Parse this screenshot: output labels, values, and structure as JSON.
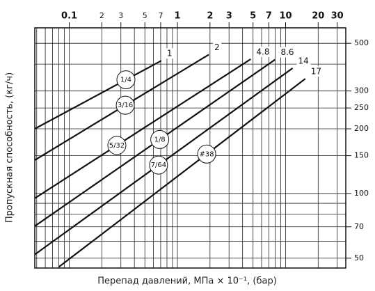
{
  "chart_data": {
    "type": "line",
    "xlabel": "Перепад давлений, МПа × 10⁻¹, (бар)",
    "ylabel": "Пропускная способность, (кг/ч)",
    "xscale": "log",
    "yscale": "log",
    "grid": true,
    "xlim": [
      0.048,
      36
    ],
    "ylim": [
      45,
      590
    ],
    "xticks": [
      0.1,
      {
        "value": 0.2,
        "label": "2"
      },
      {
        "value": 0.3,
        "label": "3"
      },
      {
        "value": 0.5,
        "label": "5"
      },
      {
        "value": 0.7,
        "label": "7"
      },
      1,
      2,
      3,
      5,
      7,
      10,
      20,
      30
    ],
    "yticks": [
      50,
      70,
      100,
      150,
      200,
      250,
      300,
      500
    ],
    "xgrid": [
      0.05,
      0.06,
      0.07,
      0.08,
      0.09,
      0.1,
      0.2,
      0.3,
      0.4,
      0.5,
      0.6,
      0.7,
      0.8,
      0.9,
      1,
      2,
      3,
      4,
      5,
      6,
      7,
      8,
      9,
      10,
      20,
      30
    ],
    "ygrid": [
      50,
      60,
      70,
      80,
      90,
      100,
      150,
      200,
      250,
      300,
      400,
      500
    ],
    "color": "#111111",
    "series": [
      {
        "name": "1",
        "orifice": "1/4",
        "x": [
          0.048,
          0.71
        ],
        "values": [
          200,
          415
        ]
      },
      {
        "name": "2",
        "orifice": "3/16",
        "x": [
          0.048,
          1.95
        ],
        "values": [
          143,
          443
        ]
      },
      {
        "name": "4.8",
        "orifice": "5/32",
        "x": [
          0.048,
          4.76
        ],
        "values": [
          95,
          422
        ]
      },
      {
        "name": "8.6",
        "orifice": "1/8",
        "x": [
          0.048,
          8.0
        ],
        "values": [
          70.5,
          420
        ]
      },
      {
        "name": "14",
        "orifice": "7/64",
        "x": [
          0.048,
          11.6
        ],
        "values": [
          52,
          383
        ]
      },
      {
        "name": "17",
        "orifice": "#38",
        "x": [
          0.08,
          15.2
        ],
        "values": [
          45.5,
          342
        ]
      }
    ]
  }
}
